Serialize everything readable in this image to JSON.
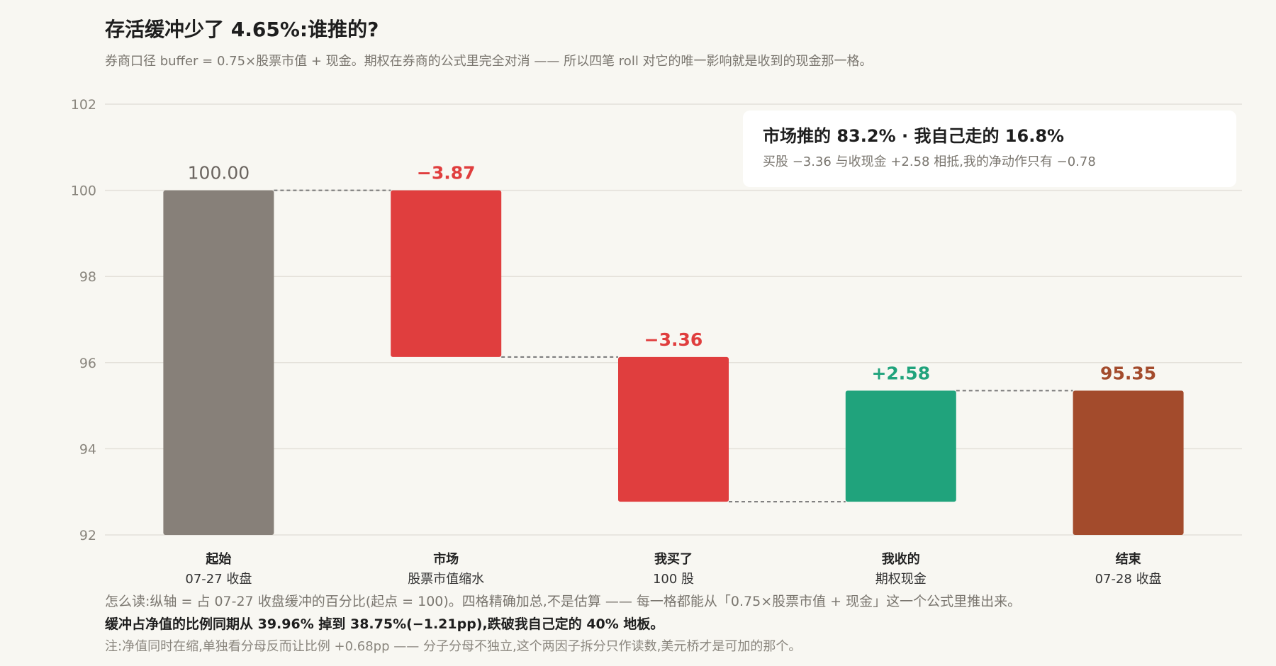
{
  "header": {
    "title": "存活缓冲少了 4.65%:谁推的?",
    "subtitle": "券商口径 buffer = 0.75×股票市值 + 现金。期权在券商的公式里完全对消 —— 所以四笔 roll 对它的唯一影响就是收到的现金那一格。"
  },
  "callout": {
    "title": "市场推的 83.2% · 我自己走的 16.8%",
    "text": "买股 −3.36 与收现金 +2.58 相抵,我的净动作只有 −0.78"
  },
  "footnotes": {
    "how_to_read": "怎么读:纵轴 = 占 07-27 收盘缓冲的百分比(起点 = 100)。四格精确加总,不是估算 —— 每一格都能从「0.75×股票市值 + 现金」这一个公式里推出来。",
    "ratio_note": "缓冲占净值的比例同期从 39.96% 掉到 38.75%(−1.21pp),跌破我自己定的 40% 地板。",
    "caveat": "注:净值同时在缩,单独看分母反而让比例 +0.68pp —— 分子分母不独立,这个两因子拆分只作读数,美元桥才是可加的那个。"
  },
  "colors": {
    "total": "#878079",
    "decrease": "#e03e3e",
    "increase": "#20a37c",
    "end": "#a34b2c",
    "grid": "#e3e0d9",
    "connector": "#777777"
  },
  "chart_data": {
    "type": "waterfall",
    "ylim": [
      92,
      102
    ],
    "yticks": [
      "92",
      "94",
      "96",
      "98",
      "100",
      "102"
    ],
    "grid": true,
    "steps": [
      {
        "label": "起始",
        "sublabel": "07-27 收盘",
        "kind": "total",
        "start": 92,
        "end": 100,
        "value_label": "100.00"
      },
      {
        "label": "市场",
        "sublabel": "股票市值缩水",
        "kind": "decrease",
        "start": 100,
        "end": 96.13,
        "value_label": "−3.87"
      },
      {
        "label": "我买了",
        "sublabel": "100 股",
        "kind": "decrease",
        "start": 96.13,
        "end": 92.77,
        "value_label": "−3.36"
      },
      {
        "label": "我收的",
        "sublabel": "期权现金",
        "kind": "increase",
        "start": 92.77,
        "end": 95.35,
        "value_label": "+2.58"
      },
      {
        "label": "结束",
        "sublabel": "07-28 收盘",
        "kind": "end",
        "start": 92,
        "end": 95.35,
        "value_label": "95.35"
      }
    ]
  }
}
